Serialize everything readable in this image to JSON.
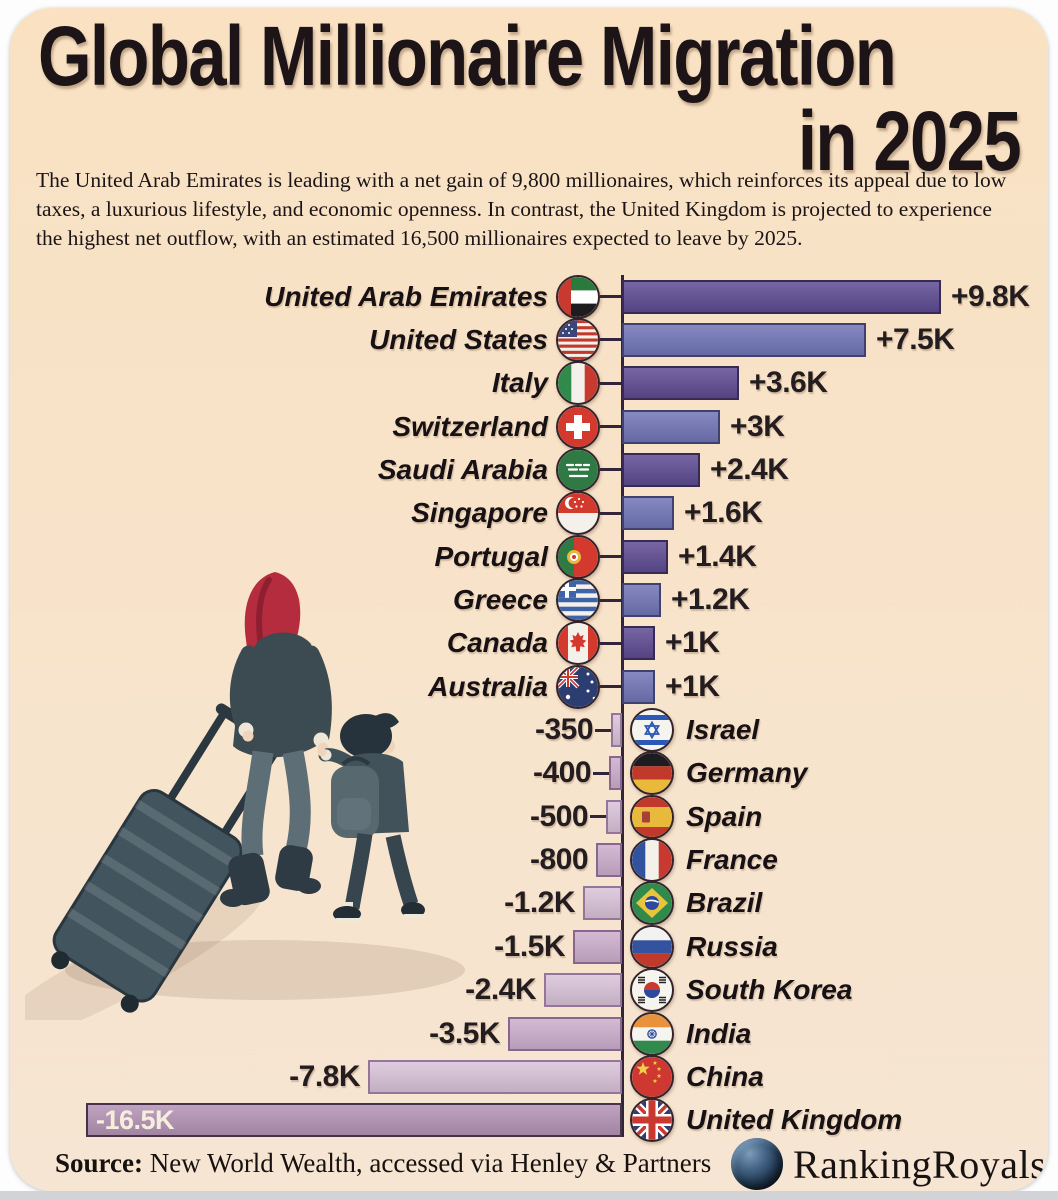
{
  "card": {
    "title_line1": "Global Millionaire Migration",
    "title_line2": "in 2025",
    "description_lines": [
      "The United Arab Emirates is leading with a net gain of 9,800 millionaires, which reinforces its appeal due to low",
      "taxes, a luxurious lifestyle, and economic openness. In contrast, the United Kingdom is projected to experience",
      "the highest net outflow, with an estimated 16,500 millionaires expected to leave by 2025."
    ],
    "source_label": "Source:",
    "source_text": " New World Wealth, accessed via Henley & Partners",
    "brand": "RankingRoyals"
  },
  "colors": {
    "background": "#f8e3c9",
    "pos_dark": "#5e4b92",
    "pos_dark_border": "#382a52",
    "pos_light": "#7175b6",
    "pos_light_border": "#41416f",
    "neg_light": "#d9c3d8",
    "neg_light_border": "#95769a",
    "neg_dark": "#ccaecd",
    "neg_dark_border": "#8a668f",
    "uk_fill": "#b493b5",
    "uk_border": "#463349",
    "axis": "#32253a",
    "text": "#1b1416",
    "value_text": "#241d20",
    "inside_label_text": "#f6eedd"
  },
  "chart_data": {
    "type": "bar",
    "orientation": "horizontal-diverging",
    "title": "Global Millionaire Migration in 2025",
    "unit": "net millionaire migration (persons)",
    "xlim": [
      -16500,
      9800
    ],
    "grid": false,
    "legend": false,
    "categories": [
      "United Arab Emirates",
      "United States",
      "Italy",
      "Switzerland",
      "Saudi Arabia",
      "Singapore",
      "Portugal",
      "Greece",
      "Canada",
      "Australia",
      "Israel",
      "Germany",
      "Spain",
      "France",
      "Brazil",
      "Russia",
      "South Korea",
      "India",
      "China",
      "United Kingdom"
    ],
    "values": [
      9800,
      7500,
      3600,
      3000,
      2400,
      1600,
      1400,
      1200,
      1000,
      1000,
      -350,
      -400,
      -500,
      -800,
      -1200,
      -1500,
      -2400,
      -3500,
      -7800,
      -16500
    ],
    "labels": [
      "+9.8K",
      "+7.5K",
      "+3.6K",
      "+3K",
      "+2.4K",
      "+1.6K",
      "+1.4K",
      "+1.2K",
      "+1K",
      "+1K",
      "-350",
      "-400",
      "-500",
      "-800",
      "-1.2K",
      "-1.5K",
      "-2.4K",
      "-3.5K",
      "-7.8K",
      "-16.5K"
    ],
    "flags": [
      "ae",
      "us",
      "it",
      "ch",
      "sa",
      "sg",
      "pt",
      "gr",
      "ca",
      "au",
      "il",
      "de",
      "es",
      "fr",
      "br",
      "ru",
      "kr",
      "in",
      "cn",
      "gb"
    ]
  }
}
